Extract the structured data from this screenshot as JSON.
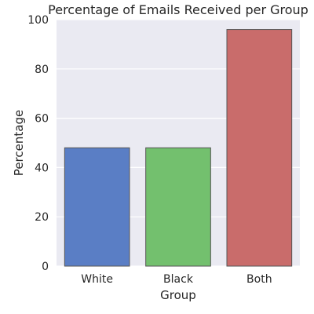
{
  "chart_data": {
    "type": "bar",
    "title": "Percentage of Emails Received per Group",
    "xlabel": "Group",
    "ylabel": "Percentage",
    "categories": [
      "White",
      "Black",
      "Both"
    ],
    "values": [
      48,
      48,
      96
    ],
    "ylim": [
      0,
      100
    ],
    "yticks": [
      "0",
      "20",
      "40",
      "60",
      "80",
      "100"
    ],
    "grid": true,
    "legend": "none",
    "colors": {
      "plot_background": "#EAEAF2",
      "grid": "#FFFFFF",
      "bars": [
        "#5A7EC5",
        "#73C06E",
        "#C96C6B"
      ],
      "bar_edge": "#555555",
      "text": "#262626"
    }
  }
}
